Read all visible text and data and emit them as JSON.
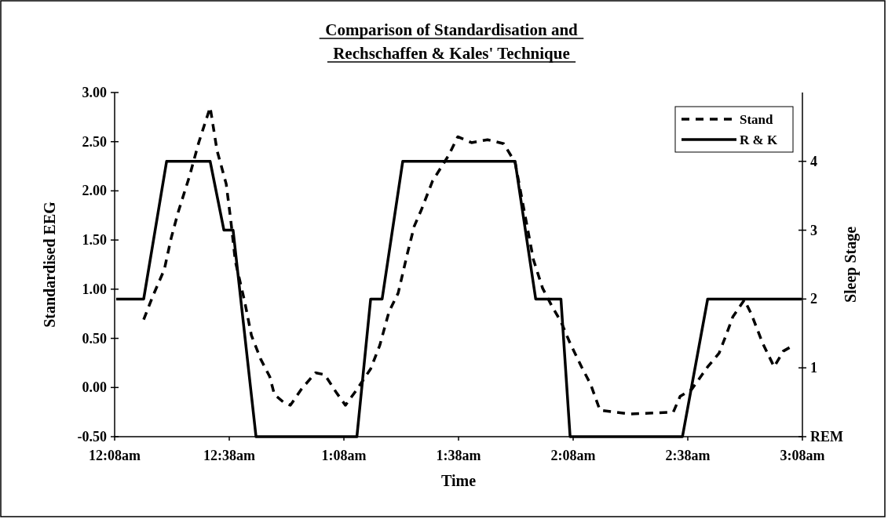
{
  "chart_data": {
    "type": "line",
    "title": "Comparison of Standardisation and\nRechschaffen & Kales' Technique",
    "xlabel": "Time",
    "ylabel": "Standardised EEG",
    "y2label": "Sleep Stage",
    "xlim": [
      0.1333,
      3.1333
    ],
    "xticks": [
      {
        "value": 0.1333,
        "label": "12:08am"
      },
      {
        "value": 0.6333,
        "label": "12:38am"
      },
      {
        "value": 1.1333,
        "label": "1:08am"
      },
      {
        "value": 1.6333,
        "label": "1:38am"
      },
      {
        "value": 2.1333,
        "label": "2:08am"
      },
      {
        "value": 2.6333,
        "label": "2:38am"
      },
      {
        "value": 3.1333,
        "label": "3:08am"
      }
    ],
    "ylim": [
      -0.5,
      3
    ],
    "yticks": [
      {
        "value": -0.5,
        "label": "-0.50"
      },
      {
        "value": 0,
        "label": "0.00"
      },
      {
        "value": 0.5,
        "label": "0.50"
      },
      {
        "value": 1,
        "label": "1.00"
      },
      {
        "value": 1.5,
        "label": "1.50"
      },
      {
        "value": 2,
        "label": "2.00"
      },
      {
        "value": 2.5,
        "label": "2.50"
      },
      {
        "value": 3,
        "label": "3.00"
      }
    ],
    "y2lim": [
      0,
      5
    ],
    "y2ticks": [
      {
        "value": 0,
        "label": "REM"
      },
      1,
      2,
      3,
      4
    ],
    "legend": "top right",
    "grid": false,
    "marker": "none",
    "series": [
      {
        "name": "Stand",
        "color": "#000000",
        "line_style": "dashed",
        "x": [
          0.26,
          0.3,
          0.35,
          0.38,
          0.41,
          0.46,
          0.5,
          0.55,
          0.58,
          0.62,
          0.64,
          0.66,
          0.7,
          0.73,
          0.77,
          0.81,
          0.83,
          0.87,
          0.9,
          0.95,
          1.01,
          1.05,
          1.1,
          1.14,
          1.19,
          1.25,
          1.29,
          1.33,
          1.37,
          1.41,
          1.44,
          1.47,
          1.52,
          1.59,
          1.63,
          1.69,
          1.76,
          1.83,
          1.88,
          1.93,
          1.96,
          2.0,
          2.04,
          2.08,
          2.12,
          2.17,
          2.21,
          2.25,
          2.38,
          2.57,
          2.6,
          2.65,
          2.72,
          2.77,
          2.8,
          2.83,
          2.88,
          2.91,
          2.96,
          3.01,
          3.05,
          3.08
        ],
        "values": [
          0.69,
          0.93,
          1.2,
          1.52,
          1.78,
          2.15,
          2.49,
          2.85,
          2.41,
          2.07,
          1.7,
          1.28,
          0.88,
          0.53,
          0.29,
          0.11,
          -0.07,
          -0.15,
          -0.18,
          -0.01,
          0.15,
          0.13,
          -0.05,
          -0.18,
          -0.02,
          0.19,
          0.43,
          0.77,
          0.96,
          1.36,
          1.64,
          1.8,
          2.1,
          2.36,
          2.55,
          2.49,
          2.52,
          2.48,
          2.29,
          1.67,
          1.3,
          1.01,
          0.83,
          0.67,
          0.45,
          0.21,
          0.03,
          -0.23,
          -0.27,
          -0.25,
          -0.09,
          -0.02,
          0.21,
          0.35,
          0.53,
          0.72,
          0.89,
          0.75,
          0.45,
          0.21,
          0.37,
          0.41
        ]
      },
      {
        "name": "R & K",
        "color": "#000000",
        "line_style": "solid",
        "axis": "y2",
        "x": [
          0.14,
          0.26,
          0.36,
          0.55,
          0.61,
          0.65,
          0.75,
          1.19,
          1.25,
          1.3,
          1.39,
          1.88,
          1.97,
          2.08,
          2.12,
          2.61,
          2.72,
          3.13
        ],
        "values": [
          2,
          2,
          4,
          4,
          3,
          3,
          0,
          0,
          2,
          2,
          4,
          4,
          2,
          2,
          0,
          0,
          2,
          2
        ]
      }
    ]
  }
}
